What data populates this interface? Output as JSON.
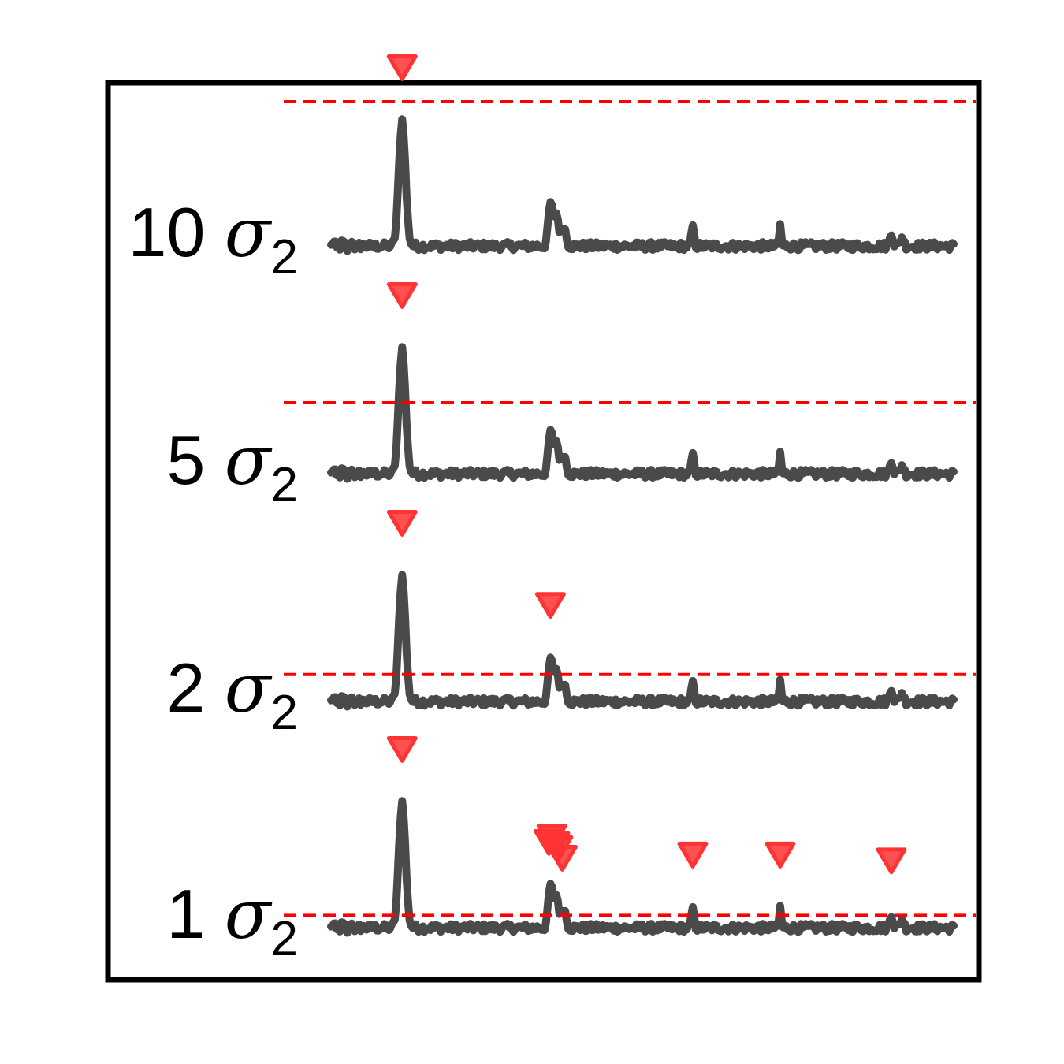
{
  "chart_data": {
    "type": "line",
    "title": "",
    "xlabel": "",
    "ylabel": "",
    "grid": false,
    "legend": "none",
    "colors": {
      "trace": "#4a4a4a",
      "threshold": "#ff0000",
      "marker": "#ff3333",
      "frame": "#000000"
    },
    "rows": [
      {
        "multiplier": "10",
        "symbol": "σ",
        "subscript": "2",
        "threshold": 10,
        "detections": [
          48
        ]
      },
      {
        "multiplier": "5",
        "symbol": "σ",
        "subscript": "2",
        "threshold": 5,
        "detections": [
          48
        ]
      },
      {
        "multiplier": "2",
        "symbol": "σ",
        "subscript": "2",
        "threshold": 2,
        "detections": [
          48,
          148
        ]
      },
      {
        "multiplier": "1",
        "symbol": "σ",
        "subscript": "2",
        "threshold": 1,
        "detections": [
          48,
          147,
          149,
          151,
          153,
          156,
          244,
          303,
          378
        ]
      }
    ],
    "trace": {
      "x_range": [
        0,
        420
      ],
      "peaks": [
        {
          "x": 48,
          "height": 8.6,
          "width": 2.2
        },
        {
          "x": 148,
          "height": 2.9,
          "width": 1.4
        },
        {
          "x": 152,
          "height": 2.2,
          "width": 1.6
        },
        {
          "x": 157,
          "height": 1.4,
          "width": 1.4
        },
        {
          "x": 244,
          "height": 1.4,
          "width": 0.8
        },
        {
          "x": 303,
          "height": 1.4,
          "width": 0.7
        },
        {
          "x": 378,
          "height": 1.0,
          "width": 1.0
        },
        {
          "x": 385,
          "height": 0.6,
          "width": 1.2
        }
      ]
    }
  }
}
